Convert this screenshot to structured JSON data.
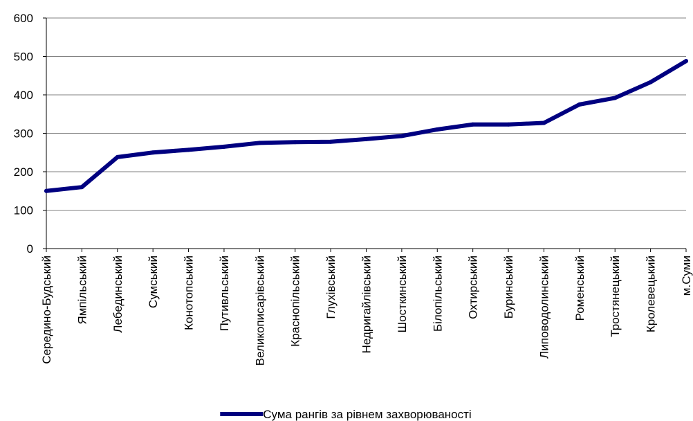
{
  "chart_data": {
    "type": "line",
    "title": "",
    "xlabel": "",
    "ylabel": "",
    "ylim": [
      0,
      600
    ],
    "yticks": [
      0,
      100,
      200,
      300,
      400,
      500,
      600
    ],
    "grid": true,
    "legend_position": "bottom",
    "categories": [
      "Середино-Будський",
      "Ямпільський",
      "Лебединський",
      "Сумський",
      "Конотопський",
      "Путивльський",
      "Великописарівський",
      "Краснопільський",
      "Глухівський",
      "Недригайлівський",
      "Шосткинський",
      "Білопільський",
      "Охтирський",
      "Буринський",
      "Липоводолинський",
      "Роменський",
      "Тростянецький",
      "Кролевецький",
      "м.Суми"
    ],
    "series": [
      {
        "name": "Сума рангів за рівнем захворюваності",
        "color": "#000080",
        "values": [
          150,
          160,
          238,
          250,
          257,
          265,
          275,
          277,
          278,
          285,
          293,
          310,
          323,
          323,
          327,
          375,
          392,
          433,
          488
        ]
      }
    ]
  }
}
